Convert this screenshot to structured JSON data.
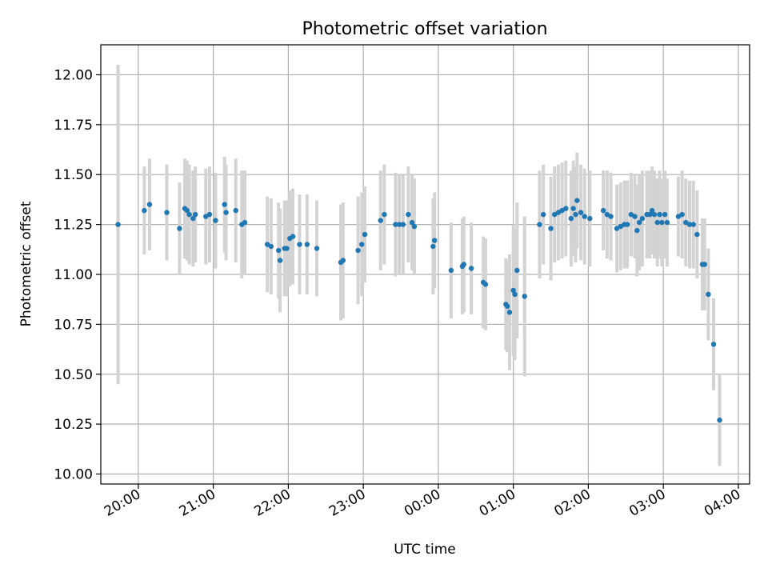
{
  "chart_data": {
    "type": "scatter",
    "title": "Photometric offset variation",
    "xlabel": "UTC time",
    "ylabel": "Photometric offset",
    "grid": true,
    "xlim_hours": [
      19.5,
      28.15
    ],
    "ylim": [
      9.95,
      12.15
    ],
    "x_ticks": [
      {
        "hour": 20,
        "label": "20:00"
      },
      {
        "hour": 21,
        "label": "21:00"
      },
      {
        "hour": 22,
        "label": "22:00"
      },
      {
        "hour": 23,
        "label": "23:00"
      },
      {
        "hour": 24,
        "label": "00:00"
      },
      {
        "hour": 25,
        "label": "01:00"
      },
      {
        "hour": 26,
        "label": "02:00"
      },
      {
        "hour": 27,
        "label": "03:00"
      },
      {
        "hour": 28,
        "label": "04:00"
      }
    ],
    "y_ticks": [
      10.0,
      10.25,
      10.5,
      10.75,
      11.0,
      11.25,
      11.5,
      11.75,
      12.0
    ],
    "colors": {
      "point": "#1f77b4",
      "errorbar": "#d3d3d3",
      "grid": "#b0b0b0"
    },
    "points": [
      [
        19.73,
        11.25,
        0.8
      ],
      [
        20.08,
        11.32,
        0.22
      ],
      [
        20.15,
        11.35,
        0.23
      ],
      [
        20.38,
        11.31,
        0.24
      ],
      [
        20.55,
        11.23,
        0.23
      ],
      [
        20.62,
        11.33,
        0.25
      ],
      [
        20.65,
        11.32,
        0.25
      ],
      [
        20.68,
        11.3,
        0.25
      ],
      [
        20.73,
        11.28,
        0.24
      ],
      [
        20.76,
        11.3,
        0.24
      ],
      [
        20.9,
        11.29,
        0.24
      ],
      [
        20.95,
        11.3,
        0.24
      ],
      [
        21.03,
        11.27,
        0.24
      ],
      [
        21.15,
        11.35,
        0.24
      ],
      [
        21.17,
        11.31,
        0.24
      ],
      [
        21.3,
        11.32,
        0.26
      ],
      [
        21.38,
        11.25,
        0.27
      ],
      [
        21.42,
        11.26,
        0.26
      ],
      [
        21.72,
        11.15,
        0.24
      ],
      [
        21.77,
        11.14,
        0.24
      ],
      [
        21.87,
        11.12,
        0.24
      ],
      [
        21.89,
        11.07,
        0.26
      ],
      [
        21.95,
        11.13,
        0.24
      ],
      [
        21.98,
        11.13,
        0.24
      ],
      [
        22.02,
        11.18,
        0.24
      ],
      [
        22.06,
        11.19,
        0.24
      ],
      [
        22.15,
        11.15,
        0.25
      ],
      [
        22.25,
        11.15,
        0.25
      ],
      [
        22.38,
        11.13,
        0.24
      ],
      [
        22.7,
        11.06,
        0.29
      ],
      [
        22.73,
        11.07,
        0.29
      ],
      [
        22.93,
        11.12,
        0.27
      ],
      [
        22.98,
        11.15,
        0.26
      ],
      [
        23.02,
        11.2,
        0.24
      ],
      [
        23.23,
        11.27,
        0.25
      ],
      [
        23.28,
        11.3,
        0.25
      ],
      [
        23.43,
        11.25,
        0.26
      ],
      [
        23.48,
        11.25,
        0.25
      ],
      [
        23.53,
        11.25,
        0.25
      ],
      [
        23.6,
        11.3,
        0.24
      ],
      [
        23.65,
        11.26,
        0.24
      ],
      [
        23.68,
        11.24,
        0.24
      ],
      [
        23.93,
        11.14,
        0.24
      ],
      [
        23.95,
        11.17,
        0.24
      ],
      [
        24.17,
        11.02,
        0.24
      ],
      [
        24.32,
        11.04,
        0.24
      ],
      [
        24.34,
        11.05,
        0.24
      ],
      [
        24.44,
        11.03,
        0.23
      ],
      [
        24.6,
        10.96,
        0.23
      ],
      [
        24.63,
        10.95,
        0.23
      ],
      [
        24.9,
        10.85,
        0.23
      ],
      [
        24.92,
        10.84,
        0.23
      ],
      [
        24.95,
        10.81,
        0.29
      ],
      [
        25.0,
        10.92,
        0.33
      ],
      [
        25.02,
        10.9,
        0.33
      ],
      [
        25.05,
        11.02,
        0.34
      ],
      [
        25.15,
        10.89,
        0.4
      ],
      [
        25.35,
        11.25,
        0.27
      ],
      [
        25.4,
        11.3,
        0.25
      ],
      [
        25.5,
        11.23,
        0.26
      ],
      [
        25.55,
        11.3,
        0.24
      ],
      [
        25.6,
        11.31,
        0.24
      ],
      [
        25.65,
        11.32,
        0.24
      ],
      [
        25.7,
        11.33,
        0.24
      ],
      [
        25.77,
        11.28,
        0.24
      ],
      [
        25.8,
        11.33,
        0.24
      ],
      [
        25.83,
        11.3,
        0.24
      ],
      [
        25.85,
        11.37,
        0.24
      ],
      [
        25.9,
        11.31,
        0.24
      ],
      [
        25.95,
        11.29,
        0.24
      ],
      [
        26.02,
        11.28,
        0.24
      ],
      [
        26.2,
        11.32,
        0.2
      ],
      [
        26.25,
        11.3,
        0.22
      ],
      [
        26.3,
        11.29,
        0.22
      ],
      [
        26.38,
        11.23,
        0.22
      ],
      [
        26.43,
        11.24,
        0.22
      ],
      [
        26.48,
        11.25,
        0.22
      ],
      [
        26.52,
        11.25,
        0.22
      ],
      [
        26.57,
        11.3,
        0.21
      ],
      [
        26.62,
        11.29,
        0.21
      ],
      [
        26.65,
        11.22,
        0.23
      ],
      [
        26.68,
        11.26,
        0.24
      ],
      [
        26.72,
        11.28,
        0.24
      ],
      [
        26.78,
        11.3,
        0.22
      ],
      [
        26.82,
        11.3,
        0.22
      ],
      [
        26.85,
        11.32,
        0.22
      ],
      [
        26.88,
        11.3,
        0.22
      ],
      [
        26.92,
        11.26,
        0.22
      ],
      [
        26.95,
        11.3,
        0.22
      ],
      [
        26.98,
        11.26,
        0.22
      ],
      [
        27.02,
        11.3,
        0.22
      ],
      [
        27.05,
        11.26,
        0.22
      ],
      [
        27.2,
        11.29,
        0.2
      ],
      [
        27.25,
        11.3,
        0.22
      ],
      [
        27.3,
        11.26,
        0.22
      ],
      [
        27.35,
        11.25,
        0.22
      ],
      [
        27.4,
        11.25,
        0.22
      ],
      [
        27.45,
        11.2,
        0.22
      ],
      [
        27.52,
        11.05,
        0.23
      ],
      [
        27.55,
        11.05,
        0.23
      ],
      [
        27.6,
        10.9,
        0.23
      ],
      [
        27.67,
        10.65,
        0.23
      ],
      [
        27.75,
        10.27,
        0.23
      ]
    ]
  }
}
